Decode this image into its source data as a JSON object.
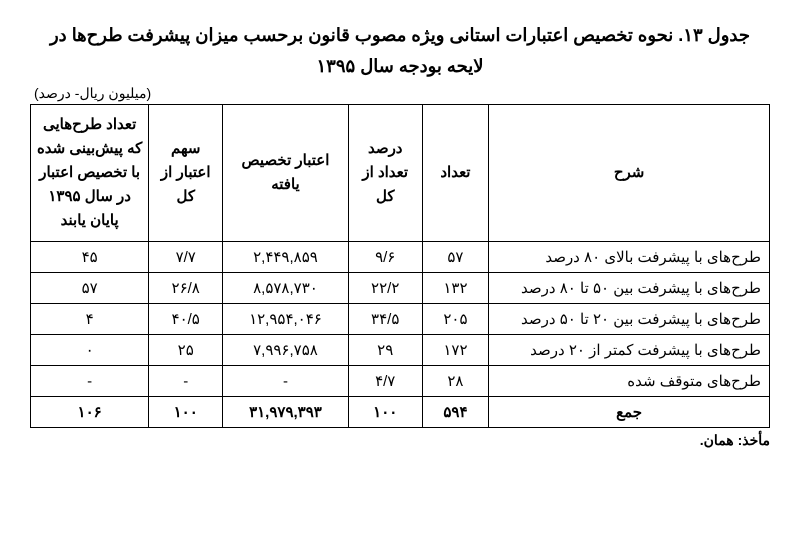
{
  "title_line1": "جدول ۱۳. نحوه تخصیص اعتبارات استانی ویژه مصوب قانون برحسب میزان پیشرفت طرح‌ها در",
  "title_line2": "لایحه بودجه سال ۱۳۹۵",
  "unit": "(میلیون ریال- درصد)",
  "columns": {
    "desc": "شرح",
    "count": "تعداد",
    "pct_count": "درصد تعداد از کل",
    "credit": "اعتبار تخصیص یافته",
    "share": "سهم اعتبار از کل",
    "finished": "تعداد طرح‌هایی که پیش‌بینی شده با تخصیص اعتبار در سال ۱۳۹۵ پایان یابند"
  },
  "rows": [
    {
      "desc": "طرح‌های با پیشرفت بالای ۸۰ درصد",
      "count": "۵۷",
      "pct_count": "۹/۶",
      "credit": "۲,۴۴۹,۸۵۹",
      "share": "۷/۷",
      "finished": "۴۵"
    },
    {
      "desc": "طرح‌های با پیشرفت بین ۵۰ تا ۸۰ درصد",
      "count": "۱۳۲",
      "pct_count": "۲۲/۲",
      "credit": "۸,۵۷۸,۷۳۰",
      "share": "۲۶/۸",
      "finished": "۵۷"
    },
    {
      "desc": "طرح‌های با پیشرفت بین ۲۰ تا ۵۰ درصد",
      "count": "۲۰۵",
      "pct_count": "۳۴/۵",
      "credit": "۱۲,۹۵۴,۰۴۶",
      "share": "۴۰/۵",
      "finished": "۴"
    },
    {
      "desc": "طرح‌های با پیشرفت کمتر از ۲۰ درصد",
      "count": "۱۷۲",
      "pct_count": "۲۹",
      "credit": "۷,۹۹۶,۷۵۸",
      "share": "۲۵",
      "finished": "۰"
    },
    {
      "desc": "طرح‌های متوقف شده",
      "count": "۲۸",
      "pct_count": "۴/۷",
      "credit": "-",
      "share": "-",
      "finished": "-"
    }
  ],
  "sum": {
    "desc": "جمع",
    "count": "۵۹۴",
    "pct_count": "۱۰۰",
    "credit": "۳۱,۹۷۹,۳۹۳",
    "share": "۱۰۰",
    "finished": "۱۰۶"
  },
  "source": "مأخذ: همان."
}
